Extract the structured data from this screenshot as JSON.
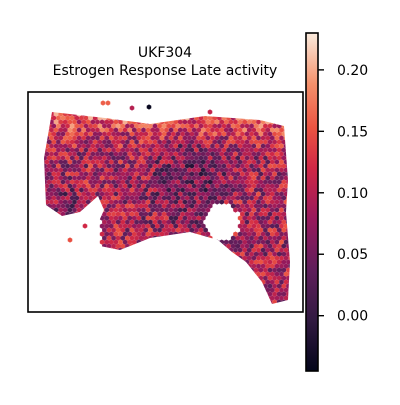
{
  "chart_data": {
    "type": "heatmap",
    "title_line1": "UKF304",
    "title_line2": "Estrogen Response Late activity",
    "colorbar": {
      "min": -0.045,
      "max": 0.23,
      "ticks": [
        0.0,
        0.05,
        0.1,
        0.15,
        0.2
      ],
      "tick_labels": [
        "0.00",
        "0.05",
        "0.10",
        "0.15",
        "0.20"
      ],
      "colormap": "rocket"
    },
    "grid": false,
    "spot_shape": "hexagon"
  }
}
